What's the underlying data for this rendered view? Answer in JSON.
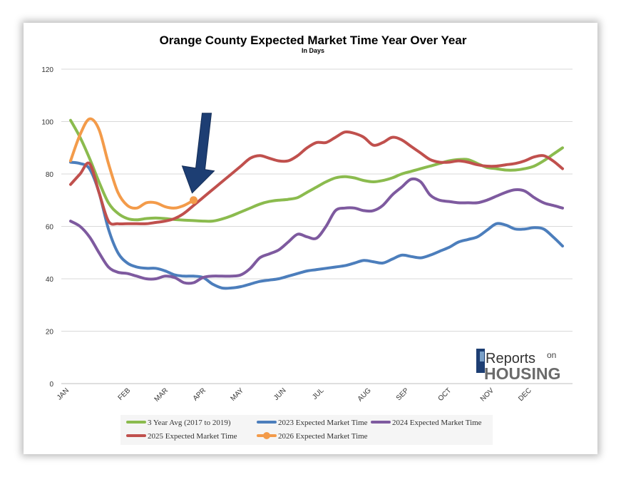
{
  "chart_data": {
    "type": "line",
    "title": "Orange County Expected Market Time Year Over Year",
    "subtitle": "In Days",
    "xlabel": "",
    "ylabel": "",
    "ylim": [
      0,
      120
    ],
    "yticks": [
      0,
      20,
      40,
      60,
      80,
      100,
      120
    ],
    "xlim": [
      0,
      50
    ],
    "month_ticks": [
      {
        "label": "JAN",
        "x": 0
      },
      {
        "label": "FEB",
        "x": 6.5
      },
      {
        "label": "MAR",
        "x": 10.5
      },
      {
        "label": "APR",
        "x": 14.5
      },
      {
        "label": "MAY",
        "x": 18.5
      },
      {
        "label": "JUN",
        "x": 23
      },
      {
        "label": "JUL",
        "x": 27
      },
      {
        "label": "AUG",
        "x": 32
      },
      {
        "label": "SEP",
        "x": 36
      },
      {
        "label": "OCT",
        "x": 40.5
      },
      {
        "label": "NOV",
        "x": 45
      },
      {
        "label": "DEC",
        "x": 49
      }
    ],
    "grid": true,
    "legend_position": "bottom",
    "series": [
      {
        "name": "3 Year Avg (2017 to 2019)",
        "color": "#8bbb4e",
        "x": [
          0,
          1,
          2,
          3,
          4,
          5,
          6,
          7,
          8,
          9,
          10,
          11,
          12,
          13,
          14,
          15,
          16,
          17,
          18,
          19,
          20,
          21,
          22,
          23,
          24,
          25,
          26,
          27,
          28,
          29,
          30,
          31,
          32,
          33,
          34,
          35,
          36,
          37,
          38,
          39,
          40,
          41,
          42,
          43,
          44,
          45,
          46,
          47,
          48,
          49,
          50,
          51,
          52
        ],
        "values": [
          100.5,
          94,
          86,
          77,
          69,
          65,
          63,
          62.5,
          63,
          63.2,
          63,
          62.6,
          62.4,
          62.2,
          62,
          62,
          62.8,
          64,
          65.5,
          67,
          68.5,
          69.5,
          70,
          70.3,
          71,
          73,
          75,
          77,
          78.5,
          79,
          78.5,
          77.5,
          77,
          77.5,
          78.5,
          80,
          81,
          82,
          83,
          84,
          85,
          85.5,
          85.5,
          84,
          82.5,
          82,
          81.5,
          81.5,
          82,
          83,
          85,
          87.5,
          90
        ]
      },
      {
        "name": "2023 Expected Market Time",
        "color": "#4c7ebc",
        "x": [
          0,
          1,
          2,
          3,
          4,
          5,
          6,
          7,
          8,
          9,
          10,
          11,
          12,
          13,
          14,
          15,
          16,
          17,
          18,
          19,
          20,
          21,
          22,
          23,
          24,
          25,
          26,
          27,
          28,
          29,
          30,
          31,
          32,
          33,
          34,
          35,
          36,
          37,
          38,
          39,
          40,
          41,
          42,
          43,
          44,
          45,
          46,
          47,
          48,
          49,
          50,
          51,
          52
        ],
        "values": [
          84.5,
          84,
          82,
          73,
          59,
          50,
          46,
          44.5,
          44,
          44,
          43,
          41.5,
          41,
          41,
          40.5,
          38,
          36.5,
          36.5,
          37,
          38,
          39,
          39.5,
          40,
          41,
          42,
          43,
          43.5,
          44,
          44.5,
          45,
          46,
          47,
          46.5,
          46,
          47.5,
          49,
          48.5,
          48,
          49,
          50.5,
          52,
          54,
          55,
          56,
          58.5,
          61,
          60.5,
          59,
          59,
          59.5,
          59,
          56,
          52.5
        ]
      },
      {
        "name": "2024 Expected Market Time",
        "color": "#7e5a9f",
        "x": [
          0,
          1,
          2,
          3,
          4,
          5,
          6,
          7,
          8,
          9,
          10,
          11,
          12,
          13,
          14,
          15,
          16,
          17,
          18,
          19,
          20,
          21,
          22,
          23,
          24,
          25,
          26,
          27,
          28,
          29,
          30,
          31,
          32,
          33,
          34,
          35,
          36,
          37,
          38,
          39,
          40,
          41,
          42,
          43,
          44,
          45,
          46,
          47,
          48,
          49,
          50,
          51,
          52
        ],
        "values": [
          62,
          60,
          56,
          50,
          44.5,
          42.5,
          42,
          41,
          40,
          40,
          41,
          40.5,
          38.5,
          38.5,
          40.5,
          41,
          41,
          41,
          41.5,
          44,
          48,
          49.5,
          51,
          54,
          57,
          56,
          55.5,
          60,
          66,
          67,
          67,
          66,
          66,
          68,
          72,
          75,
          78,
          77,
          72,
          70,
          69.5,
          69,
          69,
          69,
          70,
          71.5,
          73,
          74,
          73.5,
          71,
          69,
          68,
          67
        ]
      },
      {
        "name": "2025 Expected Market Time",
        "color": "#c0504d",
        "x": [
          0,
          1,
          2,
          3,
          4,
          5,
          6,
          7,
          8,
          9,
          10,
          11,
          12,
          13,
          14,
          15,
          16,
          17,
          18,
          19,
          20,
          21,
          22,
          23,
          24,
          25,
          26,
          27,
          28,
          29,
          30,
          31,
          32,
          33,
          34,
          35,
          36,
          37,
          38,
          39,
          40,
          41,
          42,
          43,
          44,
          45,
          46,
          47,
          48,
          49,
          50,
          51,
          52
        ],
        "values": [
          76,
          80,
          84,
          73,
          62,
          61,
          61,
          61,
          61,
          61.5,
          62,
          63,
          65,
          68,
          71,
          74,
          77,
          80,
          83,
          86,
          87,
          86,
          85,
          85,
          87,
          90,
          92,
          92,
          94,
          96,
          95.5,
          94,
          91,
          92,
          94,
          93,
          90.5,
          88,
          85.5,
          84.5,
          84.5,
          85,
          84.5,
          83.5,
          83,
          83,
          83.5,
          84,
          85,
          86.5,
          87,
          85,
          82
        ]
      },
      {
        "name": "2026 Expected Market Time",
        "color": "#f39b4a",
        "x": [
          0,
          1,
          2,
          3,
          4,
          5,
          6,
          7,
          8,
          9,
          10,
          11,
          12,
          13
        ],
        "values": [
          85,
          95,
          101,
          97,
          84,
          73,
          68,
          67,
          69,
          69,
          67.5,
          67,
          68,
          70
        ]
      }
    ],
    "annotations": [
      {
        "type": "arrow",
        "color": "#1d3e73",
        "points_to_series": "2026 Expected Market Time",
        "x": 13,
        "y": 70
      }
    ]
  },
  "logo": {
    "line1": "Reports",
    "line1_suffix": "on",
    "line2": "HOUSING"
  }
}
